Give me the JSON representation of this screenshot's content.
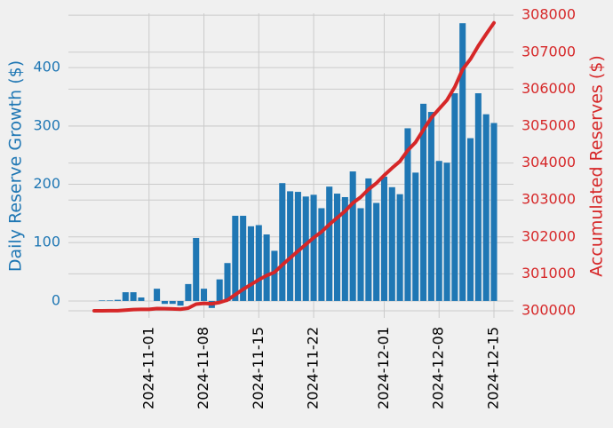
{
  "chart_data": {
    "type": "bar-line",
    "x": [
      "2024-10-25",
      "2024-10-26",
      "2024-10-27",
      "2024-10-28",
      "2024-10-29",
      "2024-10-30",
      "2024-10-31",
      "2024-11-01",
      "2024-11-02",
      "2024-11-03",
      "2024-11-04",
      "2024-11-05",
      "2024-11-06",
      "2024-11-07",
      "2024-11-08",
      "2024-11-09",
      "2024-11-10",
      "2024-11-11",
      "2024-11-12",
      "2024-11-13",
      "2024-11-14",
      "2024-11-15",
      "2024-11-16",
      "2024-11-17",
      "2024-11-18",
      "2024-11-19",
      "2024-11-20",
      "2024-11-21",
      "2024-11-22",
      "2024-11-23",
      "2024-11-24",
      "2024-11-25",
      "2024-11-26",
      "2024-11-27",
      "2024-11-28",
      "2024-11-29",
      "2024-11-30",
      "2024-12-01",
      "2024-12-02",
      "2024-12-03",
      "2024-12-04",
      "2024-12-05",
      "2024-12-06",
      "2024-12-07",
      "2024-12-08",
      "2024-12-09",
      "2024-12-10",
      "2024-12-11",
      "2024-12-12",
      "2024-12-13",
      "2024-12-14",
      "2024-12-15"
    ],
    "series": [
      {
        "name": "Daily Reserve Growth ($)",
        "type": "bar",
        "color": "#1f77b4",
        "values": [
          0,
          1,
          1,
          2,
          15,
          15,
          6,
          0,
          21,
          -5,
          -5,
          -8,
          29,
          108,
          21,
          -12,
          37,
          65,
          146,
          146,
          128,
          130,
          114,
          86,
          202,
          188,
          187,
          179,
          182,
          159,
          196,
          184,
          178,
          222,
          159,
          210,
          168,
          213,
          195,
          183,
          296,
          220,
          338,
          324,
          240,
          237,
          356,
          476,
          279,
          356,
          320,
          305
        ]
      },
      {
        "name": "Accumulated Reserves ($)",
        "type": "line",
        "axis": "y2",
        "color": "#d62728",
        "values": [
          300000,
          300001,
          300002,
          300004,
          300019,
          300034,
          300040,
          300040,
          300061,
          300056,
          300051,
          300043,
          300072,
          300180,
          300201,
          300189,
          300226,
          300291,
          300437,
          300583,
          300711,
          300841,
          300955,
          301041,
          301243,
          301431,
          301618,
          301797,
          301979,
          302138,
          302334,
          302518,
          302696,
          302918,
          303077,
          303287,
          303455,
          303668,
          303863,
          304046,
          304342,
          304562,
          304900,
          305224,
          305464,
          305701,
          306057,
          306533,
          306812,
          307168,
          307488,
          307793
        ]
      }
    ],
    "xticks": [
      "2024-11-01",
      "2024-11-08",
      "2024-11-15",
      "2024-11-22",
      "2024-12-01",
      "2024-12-08",
      "2024-12-15"
    ],
    "ylim": [
      -29,
      493
    ],
    "yticks": [
      0,
      100,
      200,
      300,
      400
    ],
    "y2lim": [
      299808,
      308052
    ],
    "y2ticks": [
      300000,
      301000,
      302000,
      303000,
      304000,
      305000,
      306000,
      307000,
      308000
    ],
    "grid": true
  }
}
